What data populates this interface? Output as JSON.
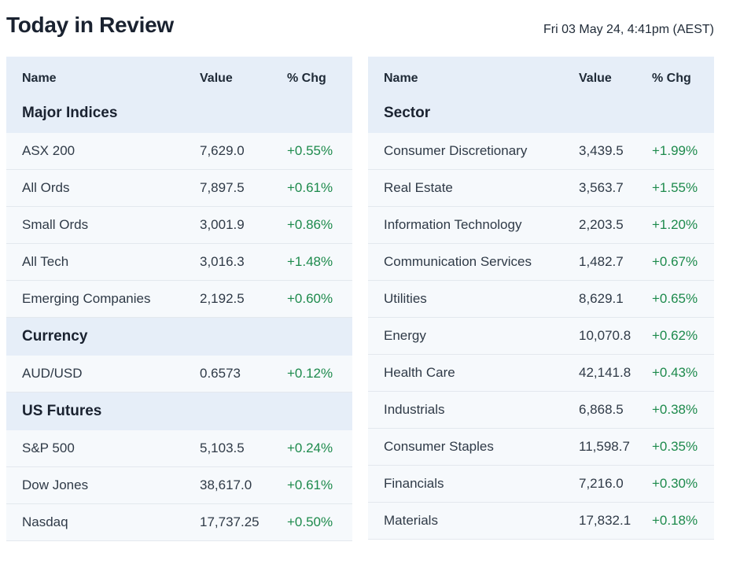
{
  "page": {
    "title": "Today in Review",
    "timestamp": "Fri 03 May 24, 4:41pm (AEST)"
  },
  "left_table": {
    "headers": {
      "name": "Name",
      "value": "Value",
      "chg": "% Chg"
    },
    "sections": [
      {
        "title": "Major Indices",
        "rows": [
          {
            "name": "ASX 200",
            "value": "7,629.0",
            "chg": "+0.55%"
          },
          {
            "name": "All Ords",
            "value": "7,897.5",
            "chg": "+0.61%"
          },
          {
            "name": "Small Ords",
            "value": "3,001.9",
            "chg": "+0.86%"
          },
          {
            "name": "All Tech",
            "value": "3,016.3",
            "chg": "+1.48%"
          },
          {
            "name": "Emerging Companies",
            "value": "2,192.5",
            "chg": "+0.60%"
          }
        ]
      },
      {
        "title": "Currency",
        "rows": [
          {
            "name": "AUD/USD",
            "value": "0.6573",
            "chg": "+0.12%"
          }
        ]
      },
      {
        "title": "US Futures",
        "rows": [
          {
            "name": "S&P 500",
            "value": "5,103.5",
            "chg": "+0.24%"
          },
          {
            "name": "Dow Jones",
            "value": "38,617.0",
            "chg": "+0.61%"
          },
          {
            "name": "Nasdaq",
            "value": "17,737.25",
            "chg": "+0.50%"
          }
        ]
      }
    ]
  },
  "right_table": {
    "headers": {
      "name": "Name",
      "value": "Value",
      "chg": "% Chg"
    },
    "sections": [
      {
        "title": "Sector",
        "rows": [
          {
            "name": "Consumer Discretionary",
            "value": "3,439.5",
            "chg": "+1.99%"
          },
          {
            "name": "Real Estate",
            "value": "3,563.7",
            "chg": "+1.55%"
          },
          {
            "name": "Information Technology",
            "value": "2,203.5",
            "chg": "+1.20%"
          },
          {
            "name": "Communication Services",
            "value": "1,482.7",
            "chg": "+0.67%"
          },
          {
            "name": "Utilities",
            "value": "8,629.1",
            "chg": "+0.65%"
          },
          {
            "name": "Energy",
            "value": "10,070.8",
            "chg": "+0.62%"
          },
          {
            "name": "Health Care",
            "value": "42,141.8",
            "chg": "+0.43%"
          },
          {
            "name": "Industrials",
            "value": "6,868.5",
            "chg": "+0.38%"
          },
          {
            "name": "Consumer Staples",
            "value": "11,598.7",
            "chg": "+0.35%"
          },
          {
            "name": "Financials",
            "value": "7,216.0",
            "chg": "+0.30%"
          },
          {
            "name": "Materials",
            "value": "17,832.1",
            "chg": "+0.18%"
          }
        ]
      }
    ]
  },
  "colors": {
    "positive": "#1d8a4c",
    "header_bg": "#e6eef8",
    "row_bg": "#f6f9fc"
  }
}
